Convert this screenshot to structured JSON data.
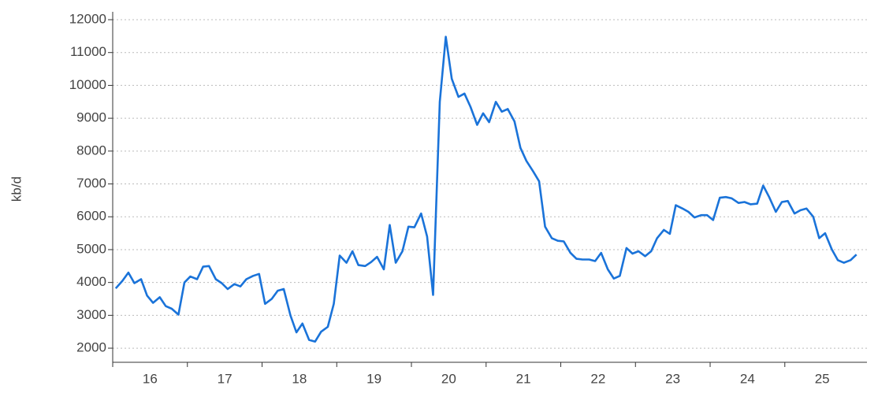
{
  "chart_data": {
    "type": "line",
    "y_label": "kb/d",
    "color": "#1a73d9",
    "x": [
      16.04,
      16.13,
      16.21,
      16.29,
      16.38,
      16.46,
      16.54,
      16.63,
      16.71,
      16.79,
      16.88,
      16.96,
      17.04,
      17.13,
      17.21,
      17.29,
      17.38,
      17.46,
      17.54,
      17.63,
      17.71,
      17.79,
      17.88,
      17.96,
      18.04,
      18.13,
      18.21,
      18.29,
      18.38,
      18.46,
      18.54,
      18.63,
      18.71,
      18.79,
      18.88,
      18.96,
      19.04,
      19.13,
      19.21,
      19.29,
      19.38,
      19.46,
      19.54,
      19.63,
      19.71,
      19.79,
      19.88,
      19.96,
      20.04,
      20.13,
      20.21,
      20.29,
      20.38,
      20.46,
      20.54,
      20.63,
      20.71,
      20.79,
      20.88,
      20.96,
      21.04,
      21.13,
      21.21,
      21.29,
      21.38,
      21.46,
      21.54,
      21.63,
      21.71,
      21.79,
      21.88,
      21.96,
      22.04,
      22.13,
      22.21,
      22.29,
      22.38,
      22.46,
      22.54,
      22.63,
      22.71,
      22.79,
      22.88,
      22.96,
      23.04,
      23.13,
      23.21,
      23.29,
      23.38,
      23.46,
      23.54,
      23.63,
      23.71,
      23.79,
      23.88,
      23.96,
      24.04,
      24.13,
      24.21,
      24.29,
      24.38,
      24.46,
      24.54,
      24.63,
      24.71,
      24.79,
      24.88,
      24.96,
      25.04,
      25.13,
      25.21,
      25.29,
      25.38,
      25.46,
      25.54,
      25.63,
      25.71,
      25.79,
      25.88,
      25.96
    ],
    "values": [
      3820,
      4050,
      4300,
      3980,
      4100,
      3600,
      3380,
      3550,
      3280,
      3200,
      3020,
      4000,
      4180,
      4100,
      4480,
      4500,
      4100,
      3980,
      3800,
      3950,
      3880,
      4100,
      4200,
      4260,
      3350,
      3500,
      3750,
      3800,
      3000,
      2480,
      2750,
      2250,
      2200,
      2500,
      2650,
      3350,
      4820,
      4600,
      4950,
      4530,
      4500,
      4620,
      4780,
      4400,
      5750,
      4600,
      4950,
      5700,
      5680,
      6100,
      5400,
      3620,
      9500,
      11480,
      10200,
      9650,
      9750,
      9350,
      8800,
      9150,
      8880,
      9500,
      9200,
      9280,
      8900,
      8100,
      7700,
      7380,
      7080,
      5700,
      5350,
      5270,
      5250,
      4900,
      4720,
      4700,
      4700,
      4650,
      4900,
      4400,
      4120,
      4200,
      5050,
      4880,
      4950,
      4800,
      4950,
      5350,
      5600,
      5480,
      6350,
      6250,
      6150,
      5980,
      6050,
      6050,
      5900,
      6580,
      6600,
      6560,
      6420,
      6450,
      6380,
      6400,
      6950,
      6600,
      6150,
      6450,
      6480,
      6100,
      6200,
      6250,
      6000,
      5350,
      5500,
      5000,
      4680,
      4600,
      4680,
      4850
    ],
    "xlim": [
      16,
      26.1
    ],
    "xticks": [
      {
        "value": 16.5,
        "label": "16"
      },
      {
        "value": 17.5,
        "label": "17"
      },
      {
        "value": 18.5,
        "label": "18"
      },
      {
        "value": 19.5,
        "label": "19"
      },
      {
        "value": 20.5,
        "label": "20"
      },
      {
        "value": 21.5,
        "label": "21"
      },
      {
        "value": 22.5,
        "label": "22"
      },
      {
        "value": 23.5,
        "label": "23"
      },
      {
        "value": 24.5,
        "label": "24"
      },
      {
        "value": 25.5,
        "label": "25"
      }
    ],
    "ylim": [
      1570,
      12240
    ],
    "yticks": [
      2000,
      3000,
      4000,
      5000,
      6000,
      7000,
      8000,
      9000,
      10000,
      11000,
      12000
    ],
    "grid": true
  }
}
